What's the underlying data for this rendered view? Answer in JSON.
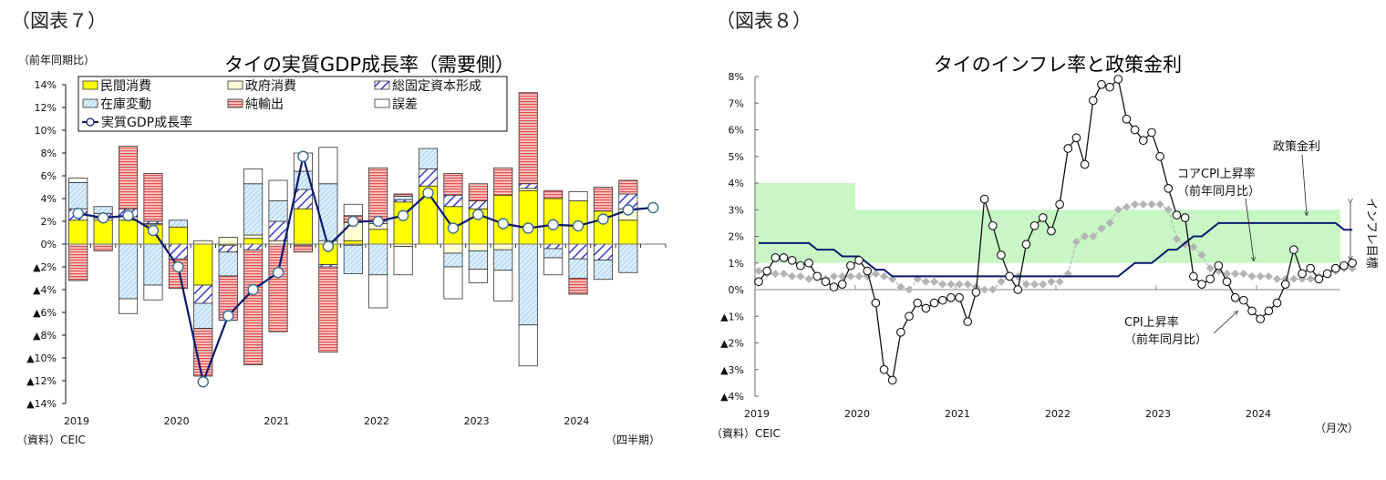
{
  "chart_data": [
    {
      "type": "bar",
      "figure_label": "（図表７）",
      "title": "タイの実質GDP成長率（需要側）",
      "ylabel": "（前年同期比）",
      "xlabel": "（四半期）",
      "source": "（資料）CEIC",
      "ylim": [
        -14,
        14
      ],
      "ytick_values": [
        14,
        12,
        10,
        8,
        6,
        4,
        2,
        0,
        -2,
        -4,
        -6,
        -8,
        -10,
        -12,
        -14
      ],
      "ytick_labels": [
        "14%",
        "12%",
        "10%",
        "8%",
        "6%",
        "4%",
        "2%",
        "0%",
        "▲2%",
        "▲4%",
        "▲6%",
        "▲8%",
        "▲10%",
        "▲12%",
        "▲14%"
      ],
      "year_labels": [
        "2019",
        "2020",
        "2021",
        "2022",
        "2023",
        "2024"
      ],
      "categories": [
        "2019Q1",
        "2019Q2",
        "2019Q3",
        "2019Q4",
        "2020Q1",
        "2020Q2",
        "2020Q3",
        "2020Q4",
        "2021Q1",
        "2021Q2",
        "2021Q3",
        "2021Q4",
        "2022Q1",
        "2022Q2",
        "2022Q3",
        "2022Q4",
        "2023Q1",
        "2023Q2",
        "2023Q3",
        "2023Q4",
        "2024Q1",
        "2024Q2",
        "2024Q3",
        "2024Q4"
      ],
      "legend": [
        "民間消費",
        "政府消費",
        "総固定資本形成",
        "在庫変動",
        "純輸出",
        "誤差",
        "実質GDP成長率"
      ],
      "series": [
        {
          "name": "民間消費",
          "values": [
            2.1,
            2.1,
            2.1,
            1.7,
            1.5,
            -3.6,
            -0.1,
            0.5,
            0.0,
            3.1,
            -1.8,
            0.3,
            1.3,
            3.7,
            5.1,
            3.3,
            3.1,
            4.3,
            4.7,
            4.0,
            3.8,
            2.9,
            2.1,
            0.0
          ]
        },
        {
          "name": "政府消費",
          "values": [
            0.0,
            0.2,
            0.3,
            0.1,
            0.0,
            0.3,
            0.6,
            0.3,
            0.3,
            -0.1,
            0.3,
            1.6,
            0.5,
            -0.2,
            0.0,
            -0.8,
            -0.6,
            -0.5,
            0.2,
            0.0,
            0.0,
            0.0,
            1.0,
            0.0
          ]
        },
        {
          "name": "総固定資本形成",
          "values": [
            1.0,
            0.4,
            0.7,
            0.2,
            -1.3,
            -1.6,
            -0.6,
            -0.5,
            1.7,
            1.7,
            -0.2,
            -0.1,
            0.2,
            0.2,
            1.5,
            1.0,
            0.7,
            0.0,
            0.4,
            -0.4,
            -1.3,
            -1.4,
            1.3,
            0.0
          ]
        },
        {
          "name": "在庫変動",
          "values": [
            2.3,
            0.6,
            -4.8,
            -3.6,
            0.6,
            -2.2,
            -2.1,
            4.5,
            1.8,
            1.6,
            5.0,
            -2.5,
            -2.7,
            0.3,
            1.8,
            -1.2,
            -1.6,
            -1.8,
            -7.1,
            -0.8,
            -1.7,
            -1.7,
            -2.5,
            0.0
          ]
        },
        {
          "name": "純輸出",
          "values": [
            -3.2,
            -0.6,
            5.5,
            4.2,
            -2.6,
            -4.2,
            -3.9,
            -10.1,
            -7.7,
            -0.6,
            -7.5,
            0.6,
            4.7,
            0.2,
            0.0,
            1.9,
            1.5,
            2.4,
            8.0,
            0.7,
            -1.4,
            2.1,
            1.2,
            0.0
          ]
        },
        {
          "name": "誤差",
          "values": [
            0.4,
            0.0,
            -1.3,
            -1.3,
            0.0,
            0.0,
            0.0,
            1.3,
            1.8,
            1.6,
            3.2,
            1.0,
            -2.9,
            -2.5,
            0.0,
            -2.8,
            -1.2,
            -2.7,
            -3.6,
            -1.5,
            0.8,
            0.0,
            0.0,
            0.0
          ]
        },
        {
          "name": "実質GDP成長率",
          "values": [
            2.7,
            2.3,
            2.5,
            1.2,
            -2.0,
            -12.1,
            -6.3,
            -4.0,
            -2.5,
            7.7,
            -0.2,
            2.0,
            2.0,
            2.5,
            4.5,
            1.4,
            2.6,
            1.8,
            1.4,
            1.7,
            1.6,
            2.2,
            3.0,
            3.2
          ]
        }
      ]
    },
    {
      "type": "line",
      "figure_label": "（図表８）",
      "title": "タイのインフレ率と政策金利",
      "xlabel": "（月次）",
      "source": "（資料）CEIC",
      "ylim": [
        -4,
        8
      ],
      "ytick_values": [
        8,
        7,
        6,
        5,
        4,
        3,
        2,
        1,
        0,
        -1,
        -2,
        -3,
        -4
      ],
      "ytick_labels": [
        "8%",
        "7%",
        "6%",
        "5%",
        "4%",
        "3%",
        "2%",
        "1%",
        "0%",
        "▲1%",
        "▲2%",
        "▲3%",
        "▲4%"
      ],
      "year_labels": [
        "2019",
        "2020",
        "2021",
        "2022",
        "2023",
        "2024"
      ],
      "x_start": "2019-01",
      "x_end": "2024-12",
      "annotations": {
        "policy_rate": "政策金利",
        "core_cpi_line1": "コアCPI上昇率",
        "core_cpi_line2": "（前年同月比）",
        "cpi_line1": "CPI上昇率",
        "cpi_line2": "（前年同月比）",
        "target_band": "インフレ目標"
      },
      "target_band": [
        {
          "from": "2019-01",
          "to": "2019-12",
          "low": 1.0,
          "high": 4.0
        },
        {
          "from": "2020-01",
          "to": "2024-12",
          "low": 1.0,
          "high": 3.0
        }
      ],
      "series": [
        {
          "name": "CPI上昇率（前年同月比）",
          "values": [
            0.3,
            0.7,
            1.2,
            1.2,
            1.1,
            0.9,
            1.0,
            0.5,
            0.3,
            0.1,
            0.2,
            0.9,
            1.1,
            0.7,
            -0.5,
            -3.0,
            -3.4,
            -1.6,
            -1.0,
            -0.5,
            -0.7,
            -0.5,
            -0.4,
            -0.3,
            -0.3,
            -1.2,
            -0.1,
            3.4,
            2.4,
            1.3,
            0.5,
            0.0,
            1.7,
            2.4,
            2.7,
            2.2,
            3.2,
            5.3,
            5.7,
            4.7,
            7.1,
            7.7,
            7.6,
            7.9,
            6.4,
            6.0,
            5.6,
            5.9,
            5.0,
            3.8,
            2.8,
            2.7,
            0.5,
            0.2,
            0.4,
            0.9,
            0.3,
            -0.3,
            -0.4,
            -0.8,
            -1.1,
            -0.8,
            -0.5,
            0.2,
            1.5,
            0.6,
            0.8,
            0.4,
            0.6,
            0.8,
            0.9,
            1.0
          ]
        },
        {
          "name": "コアCPI上昇率（前年同月比）",
          "values": [
            0.7,
            0.6,
            0.6,
            0.6,
            0.5,
            0.5,
            0.4,
            0.5,
            0.4,
            0.5,
            0.5,
            0.5,
            0.5,
            0.5,
            0.6,
            0.5,
            0.4,
            0.1,
            0.0,
            0.4,
            0.3,
            0.3,
            0.2,
            0.2,
            0.2,
            0.2,
            0.1,
            0.0,
            0.0,
            0.3,
            0.5,
            0.5,
            0.2,
            0.2,
            0.2,
            0.3,
            0.3,
            0.6,
            1.8,
            2.0,
            2.0,
            2.3,
            2.5,
            3.0,
            3.1,
            3.2,
            3.2,
            3.2,
            3.2,
            3.0,
            1.9,
            1.7,
            1.6,
            1.3,
            0.8,
            0.7,
            0.6,
            0.6,
            0.6,
            0.5,
            0.5,
            0.5,
            0.4,
            0.4,
            0.4,
            0.4,
            0.4,
            0.5,
            0.6,
            0.7,
            0.8,
            0.8
          ]
        },
        {
          "name": "政策金利",
          "values": [
            1.75,
            1.75,
            1.75,
            1.75,
            1.75,
            1.75,
            1.75,
            1.5,
            1.5,
            1.5,
            1.25,
            1.25,
            1.25,
            1.0,
            0.75,
            0.75,
            0.5,
            0.5,
            0.5,
            0.5,
            0.5,
            0.5,
            0.5,
            0.5,
            0.5,
            0.5,
            0.5,
            0.5,
            0.5,
            0.5,
            0.5,
            0.5,
            0.5,
            0.5,
            0.5,
            0.5,
            0.5,
            0.5,
            0.5,
            0.5,
            0.5,
            0.5,
            0.5,
            0.5,
            0.75,
            1.0,
            1.0,
            1.0,
            1.25,
            1.5,
            1.5,
            1.75,
            2.0,
            2.0,
            2.25,
            2.5,
            2.5,
            2.5,
            2.5,
            2.5,
            2.5,
            2.5,
            2.5,
            2.5,
            2.5,
            2.5,
            2.5,
            2.5,
            2.5,
            2.5,
            2.25,
            2.25
          ]
        }
      ]
    }
  ],
  "colors": {
    "private_consumption": "#ffff00",
    "gov_consumption": "#ffffd6",
    "gfcf": "#3a3acc",
    "inventory": "#a9d2f0",
    "net_exports": "#e86060",
    "gdp_line": "#0b1a6e",
    "target_band": "#c8f7c5",
    "policy_rate": "#0b1a6e",
    "core_cpi": "#a8a8a8"
  }
}
